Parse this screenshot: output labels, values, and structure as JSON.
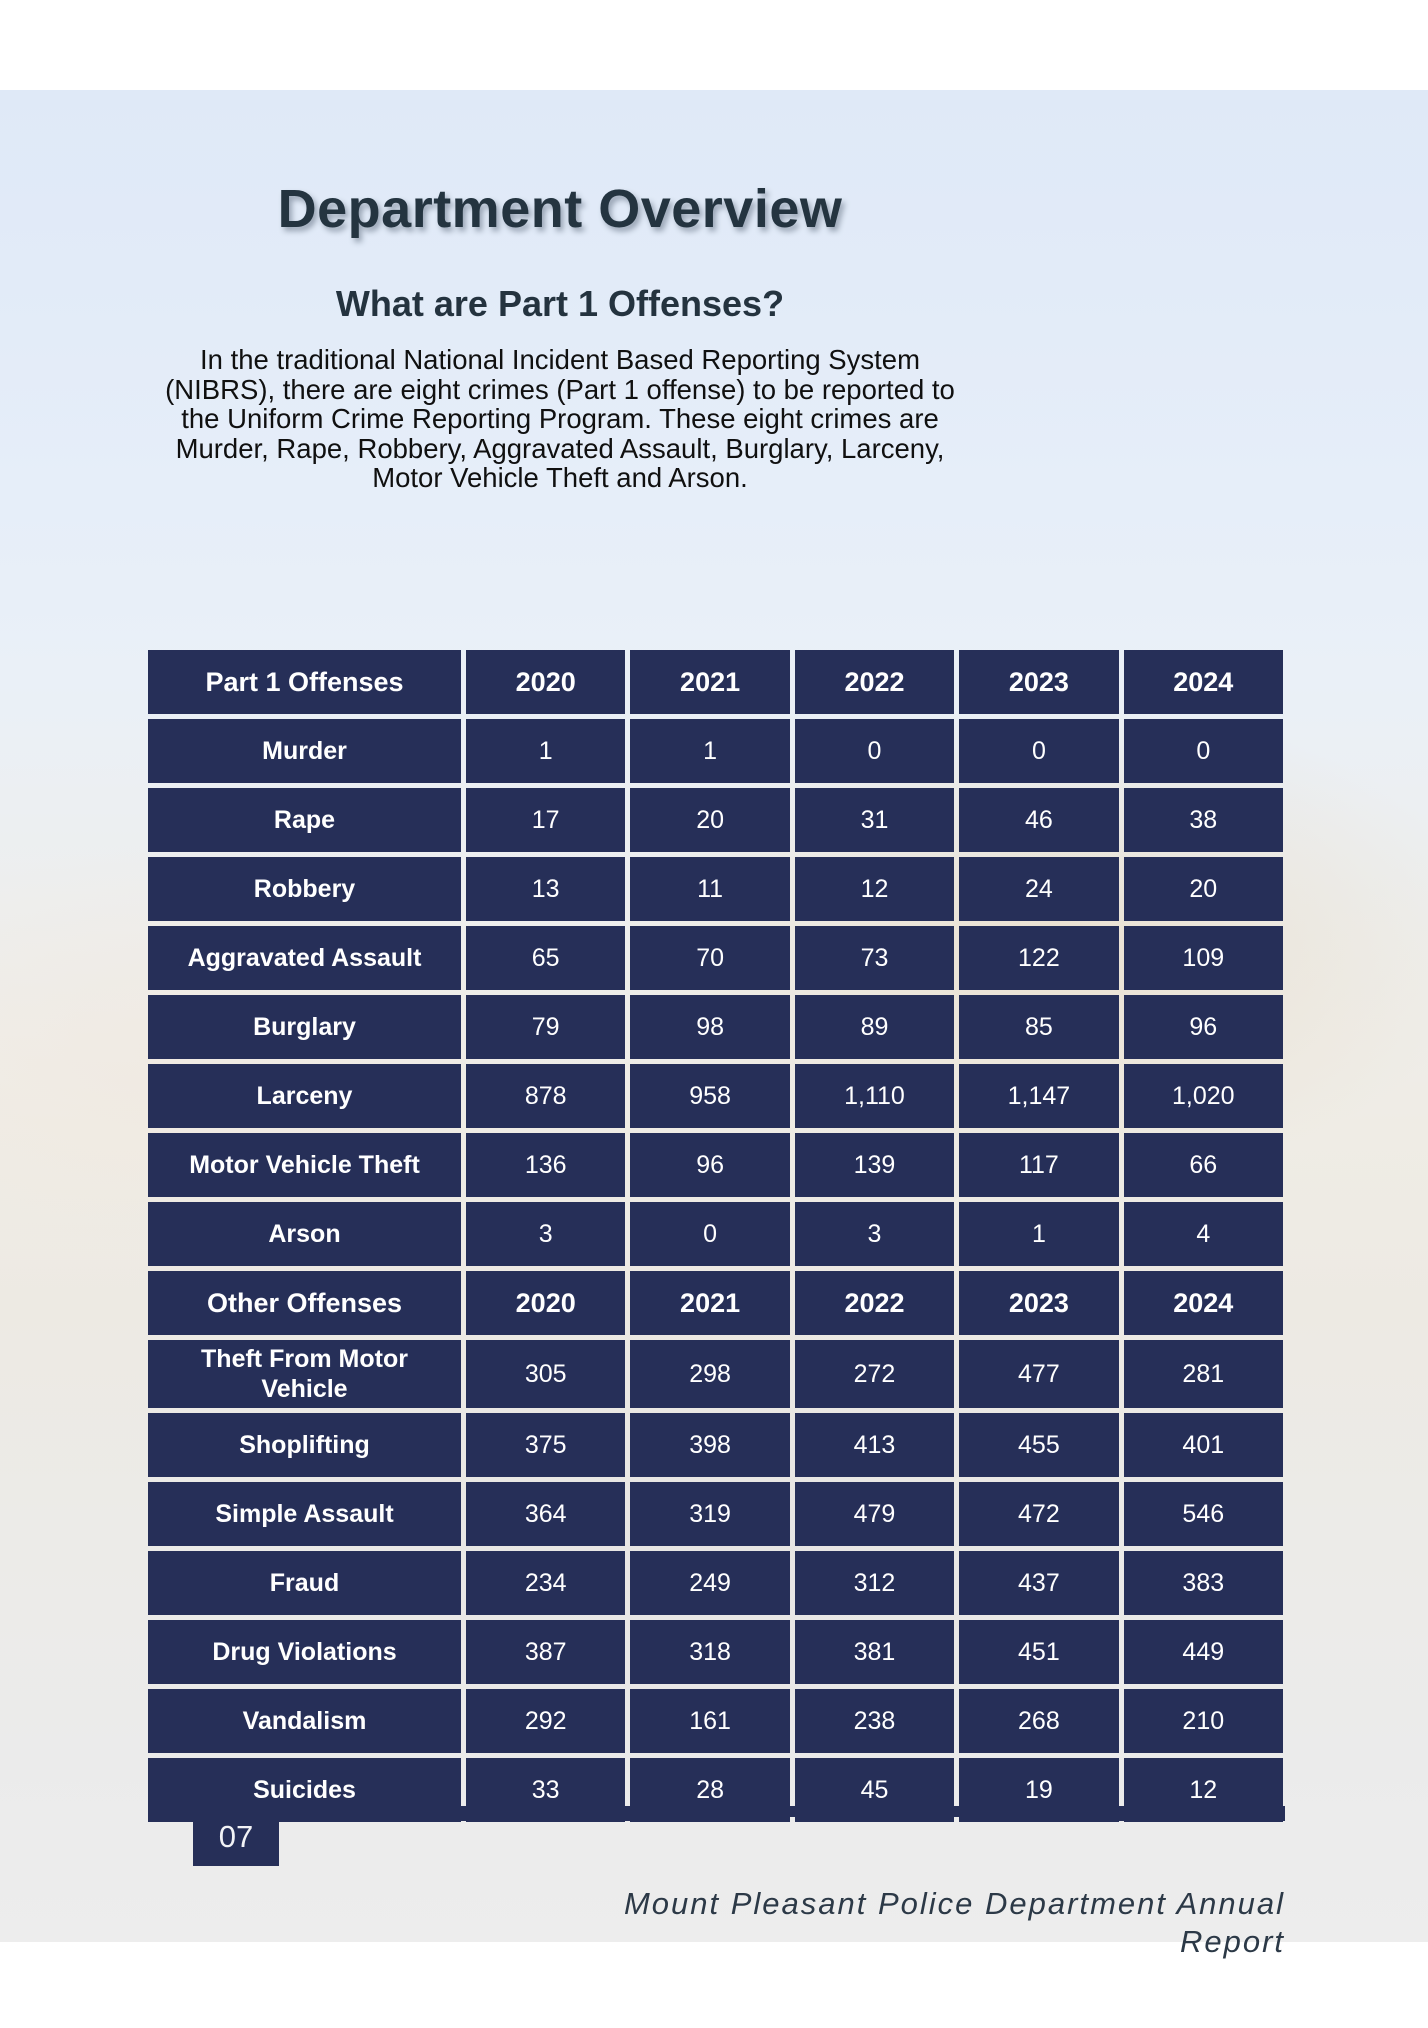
{
  "page": {
    "title": "Department Overview",
    "subtitle": "What are Part 1 Offenses?",
    "intro_lines": [
      "In the traditional National Incident Based Reporting System",
      "(NIBRS), there are eight crimes (Part 1 offense) to be reported to",
      "the Uniform Crime Reporting Program. These eight crimes are",
      "Murder, Rape, Robbery, Aggravated Assault, Burglary, Larceny,",
      "Motor Vehicle Theft and Arson."
    ],
    "page_number": "07",
    "footer_lines": [
      "Mount Pleasant Police Department Annual",
      "Report"
    ]
  },
  "colors": {
    "table_navy": "#262f58",
    "heading_text": "#243440",
    "footer_text": "#2c3947",
    "sky_blue": "#dfe9f7"
  },
  "table": {
    "sections": [
      {
        "header": {
          "label": "Part 1 Offenses",
          "years": [
            "2020",
            "2021",
            "2022",
            "2023",
            "2024"
          ]
        },
        "rows": [
          {
            "label": "Murder",
            "values": [
              "1",
              "1",
              "0",
              "0",
              "0"
            ]
          },
          {
            "label": "Rape",
            "values": [
              "17",
              "20",
              "31",
              "46",
              "38"
            ]
          },
          {
            "label": "Robbery",
            "values": [
              "13",
              "11",
              "12",
              "24",
              "20"
            ]
          },
          {
            "label": "Aggravated Assault",
            "values": [
              "65",
              "70",
              "73",
              "122",
              "109"
            ]
          },
          {
            "label": "Burglary",
            "values": [
              "79",
              "98",
              "89",
              "85",
              "96"
            ]
          },
          {
            "label": "Larceny",
            "values": [
              "878",
              "958",
              "1,110",
              "1,147",
              "1,020"
            ]
          },
          {
            "label": "Motor Vehicle Theft",
            "values": [
              "136",
              "96",
              "139",
              "117",
              "66"
            ]
          },
          {
            "label": "Arson",
            "values": [
              "3",
              "0",
              "3",
              "1",
              "4"
            ]
          }
        ]
      },
      {
        "header": {
          "label": "Other Offenses",
          "years": [
            "2020",
            "2021",
            "2022",
            "2023",
            "2024"
          ]
        },
        "rows": [
          {
            "label": "Theft From Motor Vehicle",
            "values": [
              "305",
              "298",
              "272",
              "477",
              "281"
            ]
          },
          {
            "label": "Shoplifting",
            "values": [
              "375",
              "398",
              "413",
              "455",
              "401"
            ]
          },
          {
            "label": "Simple Assault",
            "values": [
              "364",
              "319",
              "479",
              "472",
              "546"
            ]
          },
          {
            "label": "Fraud",
            "values": [
              "234",
              "249",
              "312",
              "437",
              "383"
            ]
          },
          {
            "label": "Drug Violations",
            "values": [
              "387",
              "318",
              "381",
              "451",
              "449"
            ]
          },
          {
            "label": "Vandalism",
            "values": [
              "292",
              "161",
              "238",
              "268",
              "210"
            ]
          },
          {
            "label": "Suicides",
            "values": [
              "33",
              "28",
              "45",
              "19",
              "12"
            ]
          }
        ]
      }
    ]
  }
}
